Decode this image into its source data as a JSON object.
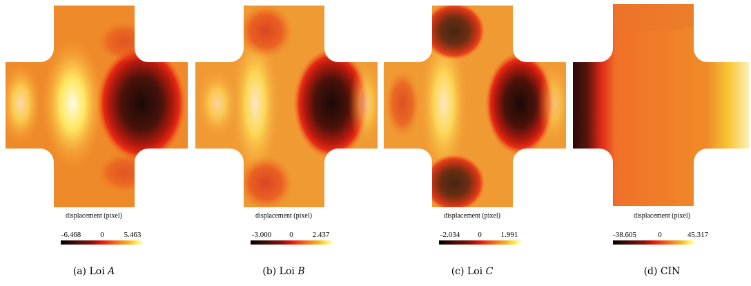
{
  "panels": [
    {
      "caption_prefix": "(a) Loi ",
      "caption_var": "A",
      "label": "displacement (pixel)",
      "min": "-6.468",
      "zero": "0",
      "max": "5.463"
    },
    {
      "caption_prefix": "(b) Loi ",
      "caption_var": "B",
      "label": "displacement (pixel)",
      "min": "-3.000",
      "zero": "0",
      "max": "2.437"
    },
    {
      "caption_prefix": "(c) Loi ",
      "caption_var": "C",
      "label": "displacement (pixel)",
      "min": "-2.034",
      "zero": "0",
      "max": "1.991"
    },
    {
      "caption_prefix": "(d) CIN",
      "caption_var": "",
      "label": "displacement (pixel)",
      "min": "-38.605",
      "zero": "0",
      "max": "45.317"
    }
  ],
  "colormap": [
    "#000000",
    "#8a1008",
    "#e61a0c",
    "#f26a14",
    "#f7b428",
    "#ffee55",
    "#ffffff"
  ]
}
